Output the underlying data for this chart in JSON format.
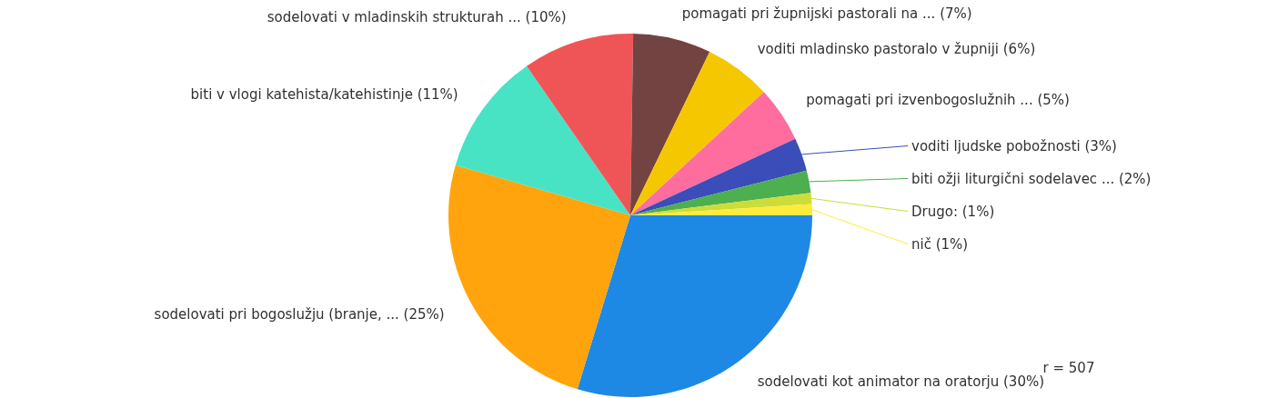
{
  "chart_data": {
    "type": "pie",
    "categories": [
      "sodelovati kot animator na oratorju",
      "sodelovati pri bogoslužju (branje, ...",
      "biti v vlogi katehista/katehistinje",
      "sodelovati v mladinskih strukturah ...",
      "pomagati pri župnijski pastorali na ...",
      "voditi mladinsko pastoralo v župniji",
      "pomagati pri izvenbogoslužnih ...",
      "voditi ljudske pobožnosti",
      "biti ožji liturgični sodelavec ...",
      "Drugo",
      "nič"
    ],
    "values": [
      30,
      25,
      11,
      10,
      7,
      6,
      5,
      3,
      2,
      1,
      1
    ],
    "value_labels": [
      "(30%)",
      "(25%)",
      "(11%)",
      "(10%)",
      "(7%)",
      "(6%)",
      "(5%)",
      "(3%)",
      "(2%)",
      ": (1%)",
      "(1%)"
    ],
    "colors": [
      "#1e88e5",
      "#ffa40c",
      "#47e3c4",
      "#ef5557",
      "#734341",
      "#f5c700",
      "#ff6c9e",
      "#3a4db8",
      "#4caf50",
      "#cddc39",
      "#ffeb3b"
    ],
    "annotations": [
      "r = 507"
    ]
  }
}
